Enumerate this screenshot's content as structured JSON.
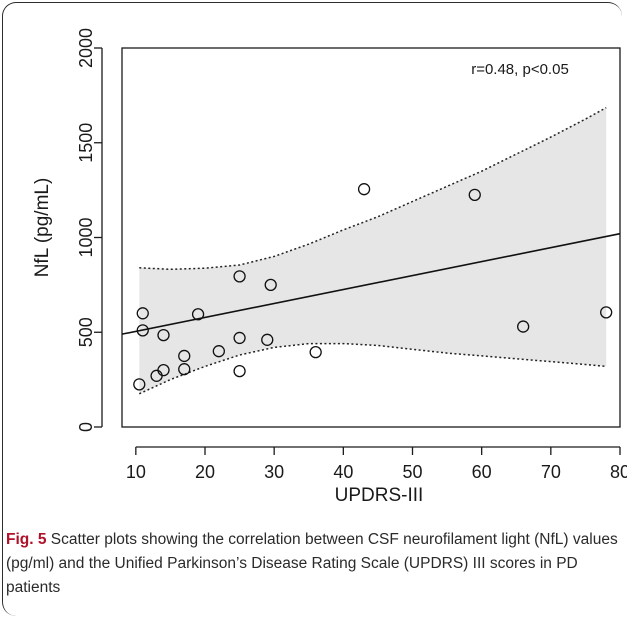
{
  "caption": {
    "label": "Fig. 5",
    "text": "Scatter plots showing the correlation between CSF neurofilament light (NfL) values (pg/ml) and the Unified Parkinson’s Disease Rating Scale (UPDRS) III scores in PD patients"
  },
  "chart_data": {
    "type": "scatter",
    "xlabel": "UPDRS-III",
    "ylabel": "NfL (pg/mL)",
    "xlim": [
      8,
      80
    ],
    "ylim": [
      0,
      2000
    ],
    "xticks": [
      10,
      20,
      30,
      40,
      50,
      60,
      70,
      80
    ],
    "yticks": [
      0,
      500,
      1000,
      1500,
      2000
    ],
    "annotation": "r=0.48, p<0.05",
    "grid": false,
    "points": [
      {
        "x": 10.5,
        "y": 225
      },
      {
        "x": 11,
        "y": 510
      },
      {
        "x": 11,
        "y": 600
      },
      {
        "x": 13,
        "y": 270
      },
      {
        "x": 14,
        "y": 300
      },
      {
        "x": 14,
        "y": 485
      },
      {
        "x": 17,
        "y": 305
      },
      {
        "x": 17,
        "y": 375
      },
      {
        "x": 19,
        "y": 595
      },
      {
        "x": 22,
        "y": 400
      },
      {
        "x": 25,
        "y": 295
      },
      {
        "x": 25,
        "y": 470
      },
      {
        "x": 25,
        "y": 795
      },
      {
        "x": 29,
        "y": 460
      },
      {
        "x": 29.5,
        "y": 750
      },
      {
        "x": 36,
        "y": 395
      },
      {
        "x": 43,
        "y": 1255
      },
      {
        "x": 59,
        "y": 1225
      },
      {
        "x": 66,
        "y": 530
      },
      {
        "x": 78,
        "y": 605
      }
    ],
    "regression": {
      "x": [
        8,
        80
      ],
      "y": [
        490,
        1020
      ]
    },
    "confidence_band": {
      "x": [
        10.5,
        15,
        20,
        25,
        30,
        35,
        40,
        45,
        50,
        55,
        60,
        65,
        70,
        75,
        78
      ],
      "upper": [
        840,
        832,
        838,
        855,
        900,
        965,
        1040,
        1110,
        1190,
        1270,
        1350,
        1440,
        1530,
        1625,
        1685
      ],
      "lower": [
        175,
        250,
        320,
        380,
        420,
        440,
        440,
        430,
        410,
        390,
        375,
        360,
        345,
        330,
        320
      ]
    }
  }
}
